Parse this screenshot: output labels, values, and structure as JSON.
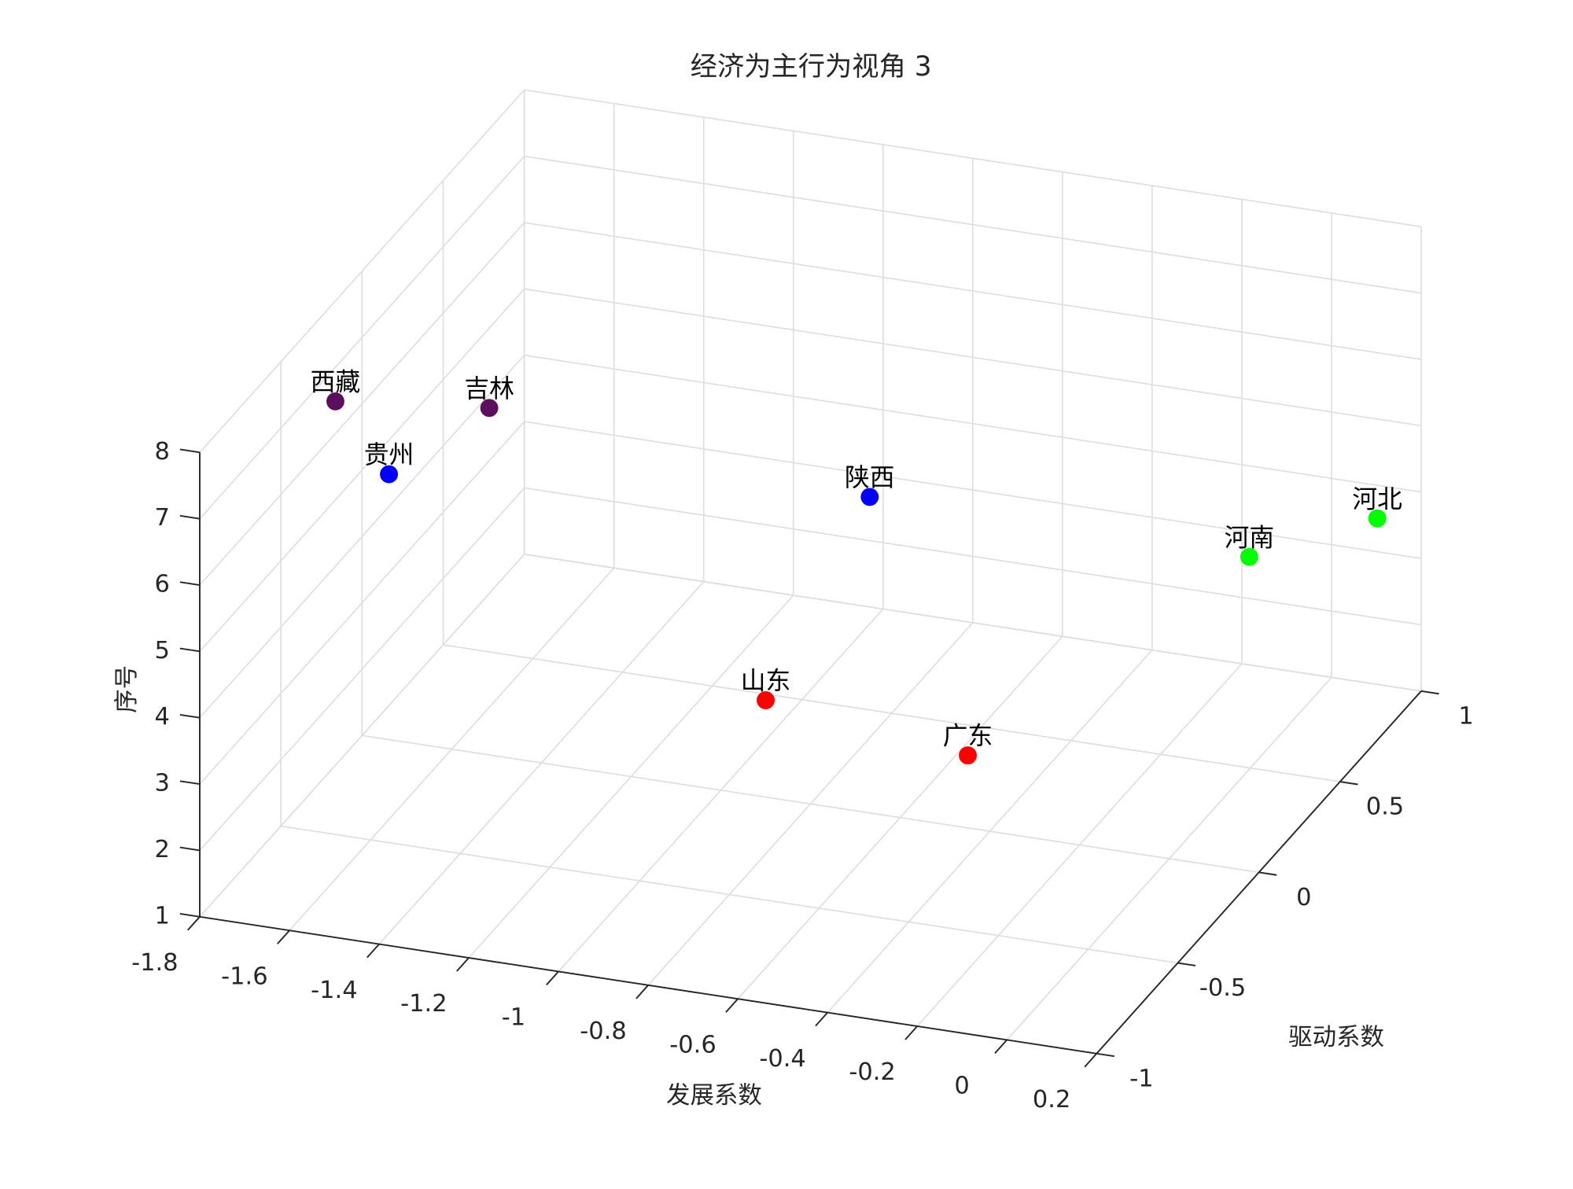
{
  "chart_data": {
    "type": "scatter3d",
    "title": "经济为主行为视角 3",
    "xlabel": "发展系数",
    "ylabel": "驱动系数",
    "zlabel": "序号",
    "labels": [
      "山东",
      "广东",
      "陕西",
      "贵州",
      "西藏",
      "吉林",
      "河南",
      "河北"
    ],
    "x": [
      -1.07,
      -0.46,
      -0.99,
      -1.74,
      -1.74,
      -1.31,
      -0.14,
      0.16
    ],
    "y": [
      0.47,
      0.03,
      0.89,
      0.0,
      -0.33,
      -0.57,
      0.88,
      0.84
    ],
    "z": [
      1,
      2,
      3,
      5,
      7,
      8,
      3,
      4
    ],
    "colors": [
      "#ff0000",
      "#ff0000",
      "#0000ff",
      "#0000ff",
      "#5c0f5c",
      "#5c0f5c",
      "#00ff00",
      "#00ff00"
    ],
    "xlim": [
      -1.8,
      0.2
    ],
    "ylim": [
      -1,
      1
    ],
    "zlim": [
      1,
      8
    ],
    "xticks": [
      -1.8,
      -1.6,
      -1.4,
      -1.2,
      -1,
      -0.8,
      -0.6,
      -0.4,
      -0.2,
      0,
      0.2
    ],
    "yticks": [
      -1,
      -0.5,
      0,
      0.5,
      1
    ],
    "zticks": [
      1,
      2,
      3,
      4,
      5,
      6,
      7,
      8
    ],
    "grid": true
  }
}
